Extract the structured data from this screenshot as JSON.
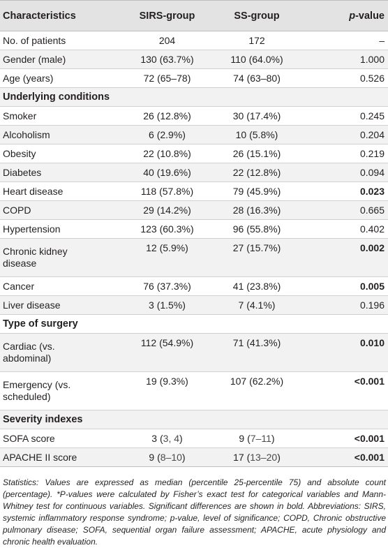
{
  "header": {
    "characteristics": "Characteristics",
    "sirs": "SIRS-group",
    "ss": "SS-group",
    "p_italic": "p",
    "p_rest": "-value"
  },
  "rows": [
    {
      "label": "No. of patients",
      "sirs": "204",
      "ss": "172",
      "p": "–"
    },
    {
      "label": "Gender (male)",
      "sirs": "130 (63.7%)",
      "ss": "110 (64.0%)",
      "p": "1.000"
    },
    {
      "label": "Age (years)",
      "sirs": "72 (65–78)",
      "ss": "74 (63–80)",
      "p": "0.526"
    },
    {
      "label": "Underlying conditions"
    },
    {
      "label": "Smoker",
      "sirs": "26 (12.8%)",
      "ss": "30 (17.4%)",
      "p": "0.245"
    },
    {
      "label": "Alcoholism",
      "sirs": "6 (2.9%)",
      "ss": "10 (5.8%)",
      "p": "0.204"
    },
    {
      "label": "Obesity",
      "sirs": "22 (10.8%)",
      "ss": "26 (15.1%)",
      "p": "0.219"
    },
    {
      "label": "Diabetes",
      "sirs": "40 (19.6%)",
      "ss": "22 (12.8%)",
      "p": "0.094"
    },
    {
      "label": "Heart disease",
      "sirs": "118 (57.8%)",
      "ss": "79 (45.9%)",
      "p": "0.023"
    },
    {
      "label": "COPD",
      "sirs": "29 (14.2%)",
      "ss": "28 (16.3%)",
      "p": "0.665"
    },
    {
      "label": "Hypertension",
      "sirs": "123 (60.3%)",
      "ss": "96 (55.8%)",
      "p": "0.402"
    },
    {
      "label_line1": "Chronic kidney",
      "label_line2": "disease",
      "sirs": "12 (5.9%)",
      "ss": "27 (15.7%)",
      "p": "0.002"
    },
    {
      "label": "Cancer",
      "sirs": "76 (37.3%)",
      "ss": "41 (23.8%)",
      "p": "0.005"
    },
    {
      "label": "Liver disease",
      "sirs": "3 (1.5%)",
      "ss": "7 (4.1%)",
      "p": "0.196"
    },
    {
      "label": "Type of surgery"
    },
    {
      "label_line1": "Cardiac (vs.",
      "label_line2": "abdominal)",
      "sirs": "112 (54.9%)",
      "ss": "71 (41.3%)",
      "p": "0.010"
    },
    {
      "label_line1": "Emergency (vs.",
      "label_line2": "scheduled)",
      "sirs": "19 (9.3%)",
      "ss": "107 (62.2%)",
      "p": "<0.001"
    },
    {
      "label": "Severity indexes"
    },
    {
      "label": "SOFA score",
      "sirs_main": "3",
      "sirs_paren": "3, 4",
      "ss_main": "9",
      "ss_paren": "7–11",
      "p": "<0.001"
    },
    {
      "label": "APACHE II score",
      "sirs_main": "9",
      "sirs_paren": "8–10",
      "ss_main": "17",
      "ss_paren": "13–20",
      "p": "<0.001"
    }
  ],
  "footnote": "Statistics: Values are expressed as median (percentile 25-percentile 75) and absolute count (percentage). *P-values were calculated by Fisher’s exact test for categorical variables and Mann-Whitney test for continuous variables. Significant differences are shown in bold. Abbreviations: SIRS, systemic inflammatory response syndrome; p-value, level of significance; COPD, Chronic obstructive pulmonary disease; SOFA, sequential organ failure assessment; APACHE, acute physiology and chronic health evaluation."
}
